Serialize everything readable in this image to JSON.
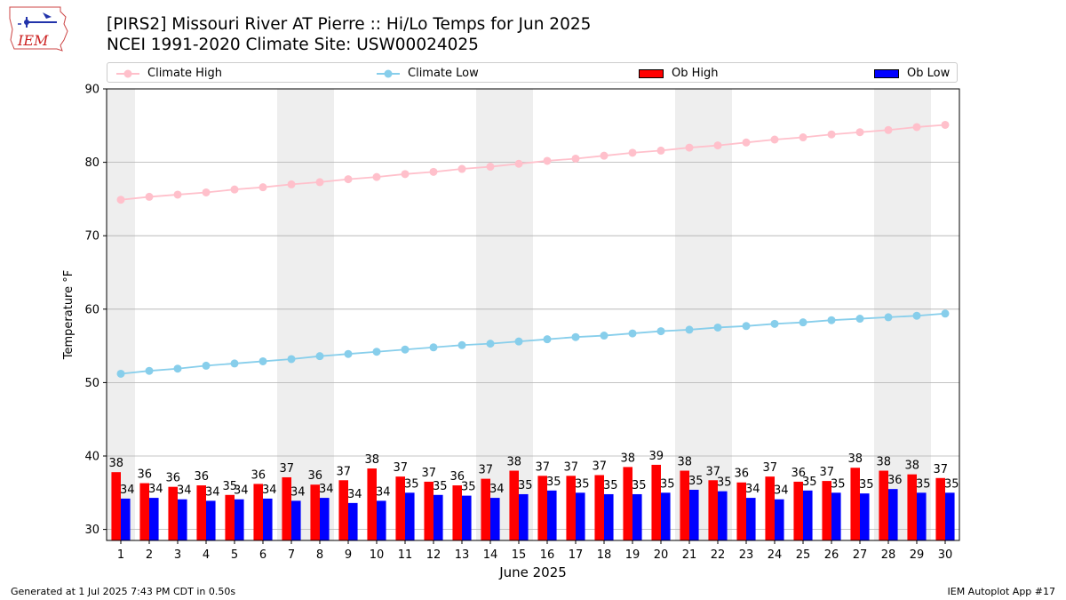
{
  "header": {
    "title_line1": "[PIRS2] Missouri River  AT Pierre :: Hi/Lo Temps for Jun 2025",
    "title_line2": "NCEI 1991-2020 Climate Site: USW00024025",
    "logo_text": "IEM"
  },
  "legend": {
    "climate_high": "Climate High",
    "climate_low": "Climate Low",
    "ob_high": "Ob High",
    "ob_low": "Ob Low"
  },
  "footer": {
    "generated": "Generated at 1 Jul 2025 7:43 PM CDT in 0.50s",
    "app": "IEM Autoplot App #17"
  },
  "colors": {
    "climate_high": "#ffc0cb",
    "climate_low": "#87ceeb",
    "ob_high": "#ff0000",
    "ob_low": "#0000ff",
    "weekend_band": "#eeeeee",
    "grid": "#b0b0b0"
  },
  "chart_data": {
    "type": "bar",
    "xlabel": "June 2025",
    "ylabel": "Temperature °F",
    "ylim": [
      28.5,
      90
    ],
    "yticks": [
      30,
      40,
      50,
      60,
      70,
      80,
      90
    ],
    "grid": "horizontal",
    "legend_position": "top",
    "x": [
      1,
      2,
      3,
      4,
      5,
      6,
      7,
      8,
      9,
      10,
      11,
      12,
      13,
      14,
      15,
      16,
      17,
      18,
      19,
      20,
      21,
      22,
      23,
      24,
      25,
      26,
      27,
      28,
      29,
      30
    ],
    "weekend_days": [
      1,
      7,
      8,
      14,
      15,
      21,
      22,
      28,
      29
    ],
    "series": [
      {
        "name": "Ob High",
        "kind": "bar",
        "values": [
          37.8,
          36.3,
          35.8,
          36.0,
          34.7,
          36.2,
          37.1,
          36.1,
          36.7,
          38.3,
          37.2,
          36.5,
          36.0,
          36.9,
          38.0,
          37.3,
          37.3,
          37.4,
          38.5,
          38.8,
          38.0,
          36.7,
          36.4,
          37.2,
          36.5,
          36.6,
          38.4,
          38.0,
          37.5,
          37.0
        ],
        "labels": [
          "38",
          "36",
          "36",
          "36",
          "35",
          "36",
          "37",
          "36",
          "37",
          "38",
          "37",
          "37",
          "36",
          "37",
          "38",
          "37",
          "37",
          "37",
          "38",
          "39",
          "38",
          "37",
          "36",
          "37",
          "36",
          "37",
          "38",
          "38",
          "38",
          "37"
        ]
      },
      {
        "name": "Ob Low",
        "kind": "bar",
        "values": [
          34.2,
          34.3,
          34.1,
          33.9,
          34.1,
          34.2,
          33.9,
          34.3,
          33.6,
          33.9,
          35.0,
          34.7,
          34.6,
          34.3,
          34.8,
          35.3,
          35.0,
          34.8,
          34.8,
          35.0,
          35.4,
          35.2,
          34.3,
          34.1,
          35.3,
          35.0,
          34.9,
          35.5,
          35.0,
          35.0
        ],
        "labels": [
          "34",
          "34",
          "34",
          "34",
          "34",
          "34",
          "34",
          "34",
          "34",
          "34",
          "35",
          "35",
          "35",
          "34",
          "35",
          "35",
          "35",
          "35",
          "35",
          "35",
          "35",
          "35",
          "34",
          "34",
          "35",
          "35",
          "35",
          "36",
          "35",
          "35"
        ]
      },
      {
        "name": "Climate High",
        "kind": "line",
        "values": [
          74.9,
          75.3,
          75.6,
          75.9,
          76.3,
          76.6,
          77.0,
          77.3,
          77.7,
          78.0,
          78.4,
          78.7,
          79.1,
          79.4,
          79.8,
          80.2,
          80.5,
          80.9,
          81.3,
          81.6,
          82.0,
          82.3,
          82.7,
          83.1,
          83.4,
          83.8,
          84.1,
          84.4,
          84.8,
          85.1
        ]
      },
      {
        "name": "Climate Low",
        "kind": "line",
        "values": [
          51.2,
          51.6,
          51.9,
          52.3,
          52.6,
          52.9,
          53.2,
          53.6,
          53.9,
          54.2,
          54.5,
          54.8,
          55.1,
          55.3,
          55.6,
          55.9,
          56.2,
          56.4,
          56.7,
          57.0,
          57.2,
          57.5,
          57.7,
          58.0,
          58.2,
          58.5,
          58.7,
          58.9,
          59.1,
          59.4
        ]
      }
    ]
  }
}
